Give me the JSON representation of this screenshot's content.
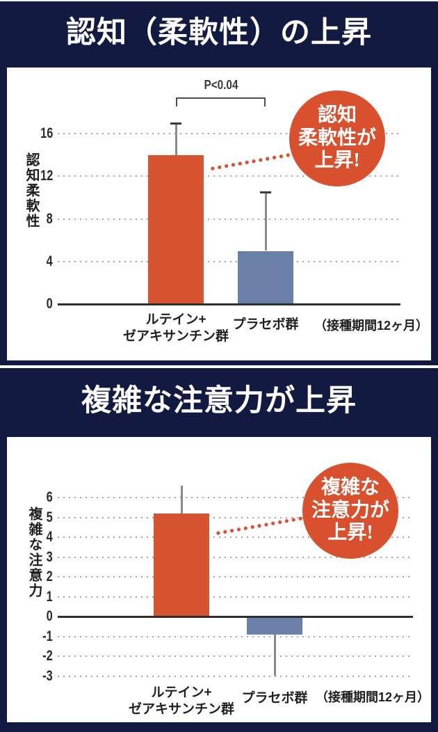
{
  "colors": {
    "background_navy": "#131a41",
    "panel_white": "#ffffff",
    "bar_orange": "#d8532f",
    "bar_blue": "#6a80a8",
    "callout_red": "#d8502d",
    "gridline_gray": "#a0a0a0",
    "axis_dark": "#2e2e2e"
  },
  "sections": [
    {
      "title": "認知（柔軟性）の上昇",
      "callout_lines": [
        "認知",
        "柔軟性が",
        "上昇!"
      ]
    },
    {
      "title": "複雑な注意力が上昇",
      "callout_lines": [
        "複雑な",
        "注意力が",
        "上昇!"
      ]
    }
  ],
  "chart_data": [
    {
      "type": "bar",
      "title": "認知（柔軟性）の上昇",
      "ylabel": "認知柔軟性",
      "xlabel": "",
      "categories": [
        "ルテイン+\nゼアキサンチン群",
        "プラセボ群"
      ],
      "values": [
        14,
        5
      ],
      "errors": {
        "plus": [
          3,
          5.5
        ],
        "minus": [
          0,
          0
        ]
      },
      "ylim": [
        0,
        17.5
      ],
      "yticks": [
        0,
        4,
        8,
        12,
        16
      ],
      "bar_colors": [
        "#d8532f",
        "#6a80a8"
      ],
      "annotation": "P<0.04",
      "note": "（接種期間12ヶ月）",
      "grid": true,
      "legend": "none"
    },
    {
      "type": "bar",
      "title": "複雑な注意力が上昇",
      "ylabel": "複雑な注意力",
      "xlabel": "",
      "categories": [
        "ルテイン+\nゼアキサンチン群",
        "プラセボ群"
      ],
      "values": [
        5.2,
        -0.9
      ],
      "errors": {
        "plus": [
          1.4,
          0
        ],
        "minus": [
          0,
          2.1
        ]
      },
      "ylim": [
        -3.5,
        7
      ],
      "yticks": [
        -3,
        -2,
        -1,
        0,
        1,
        2,
        3,
        4,
        5,
        6
      ],
      "bar_colors": [
        "#d8532f",
        "#6a80a8"
      ],
      "annotation": "",
      "note": "（接種期間12ヶ月）",
      "grid": true,
      "legend": "none"
    }
  ]
}
